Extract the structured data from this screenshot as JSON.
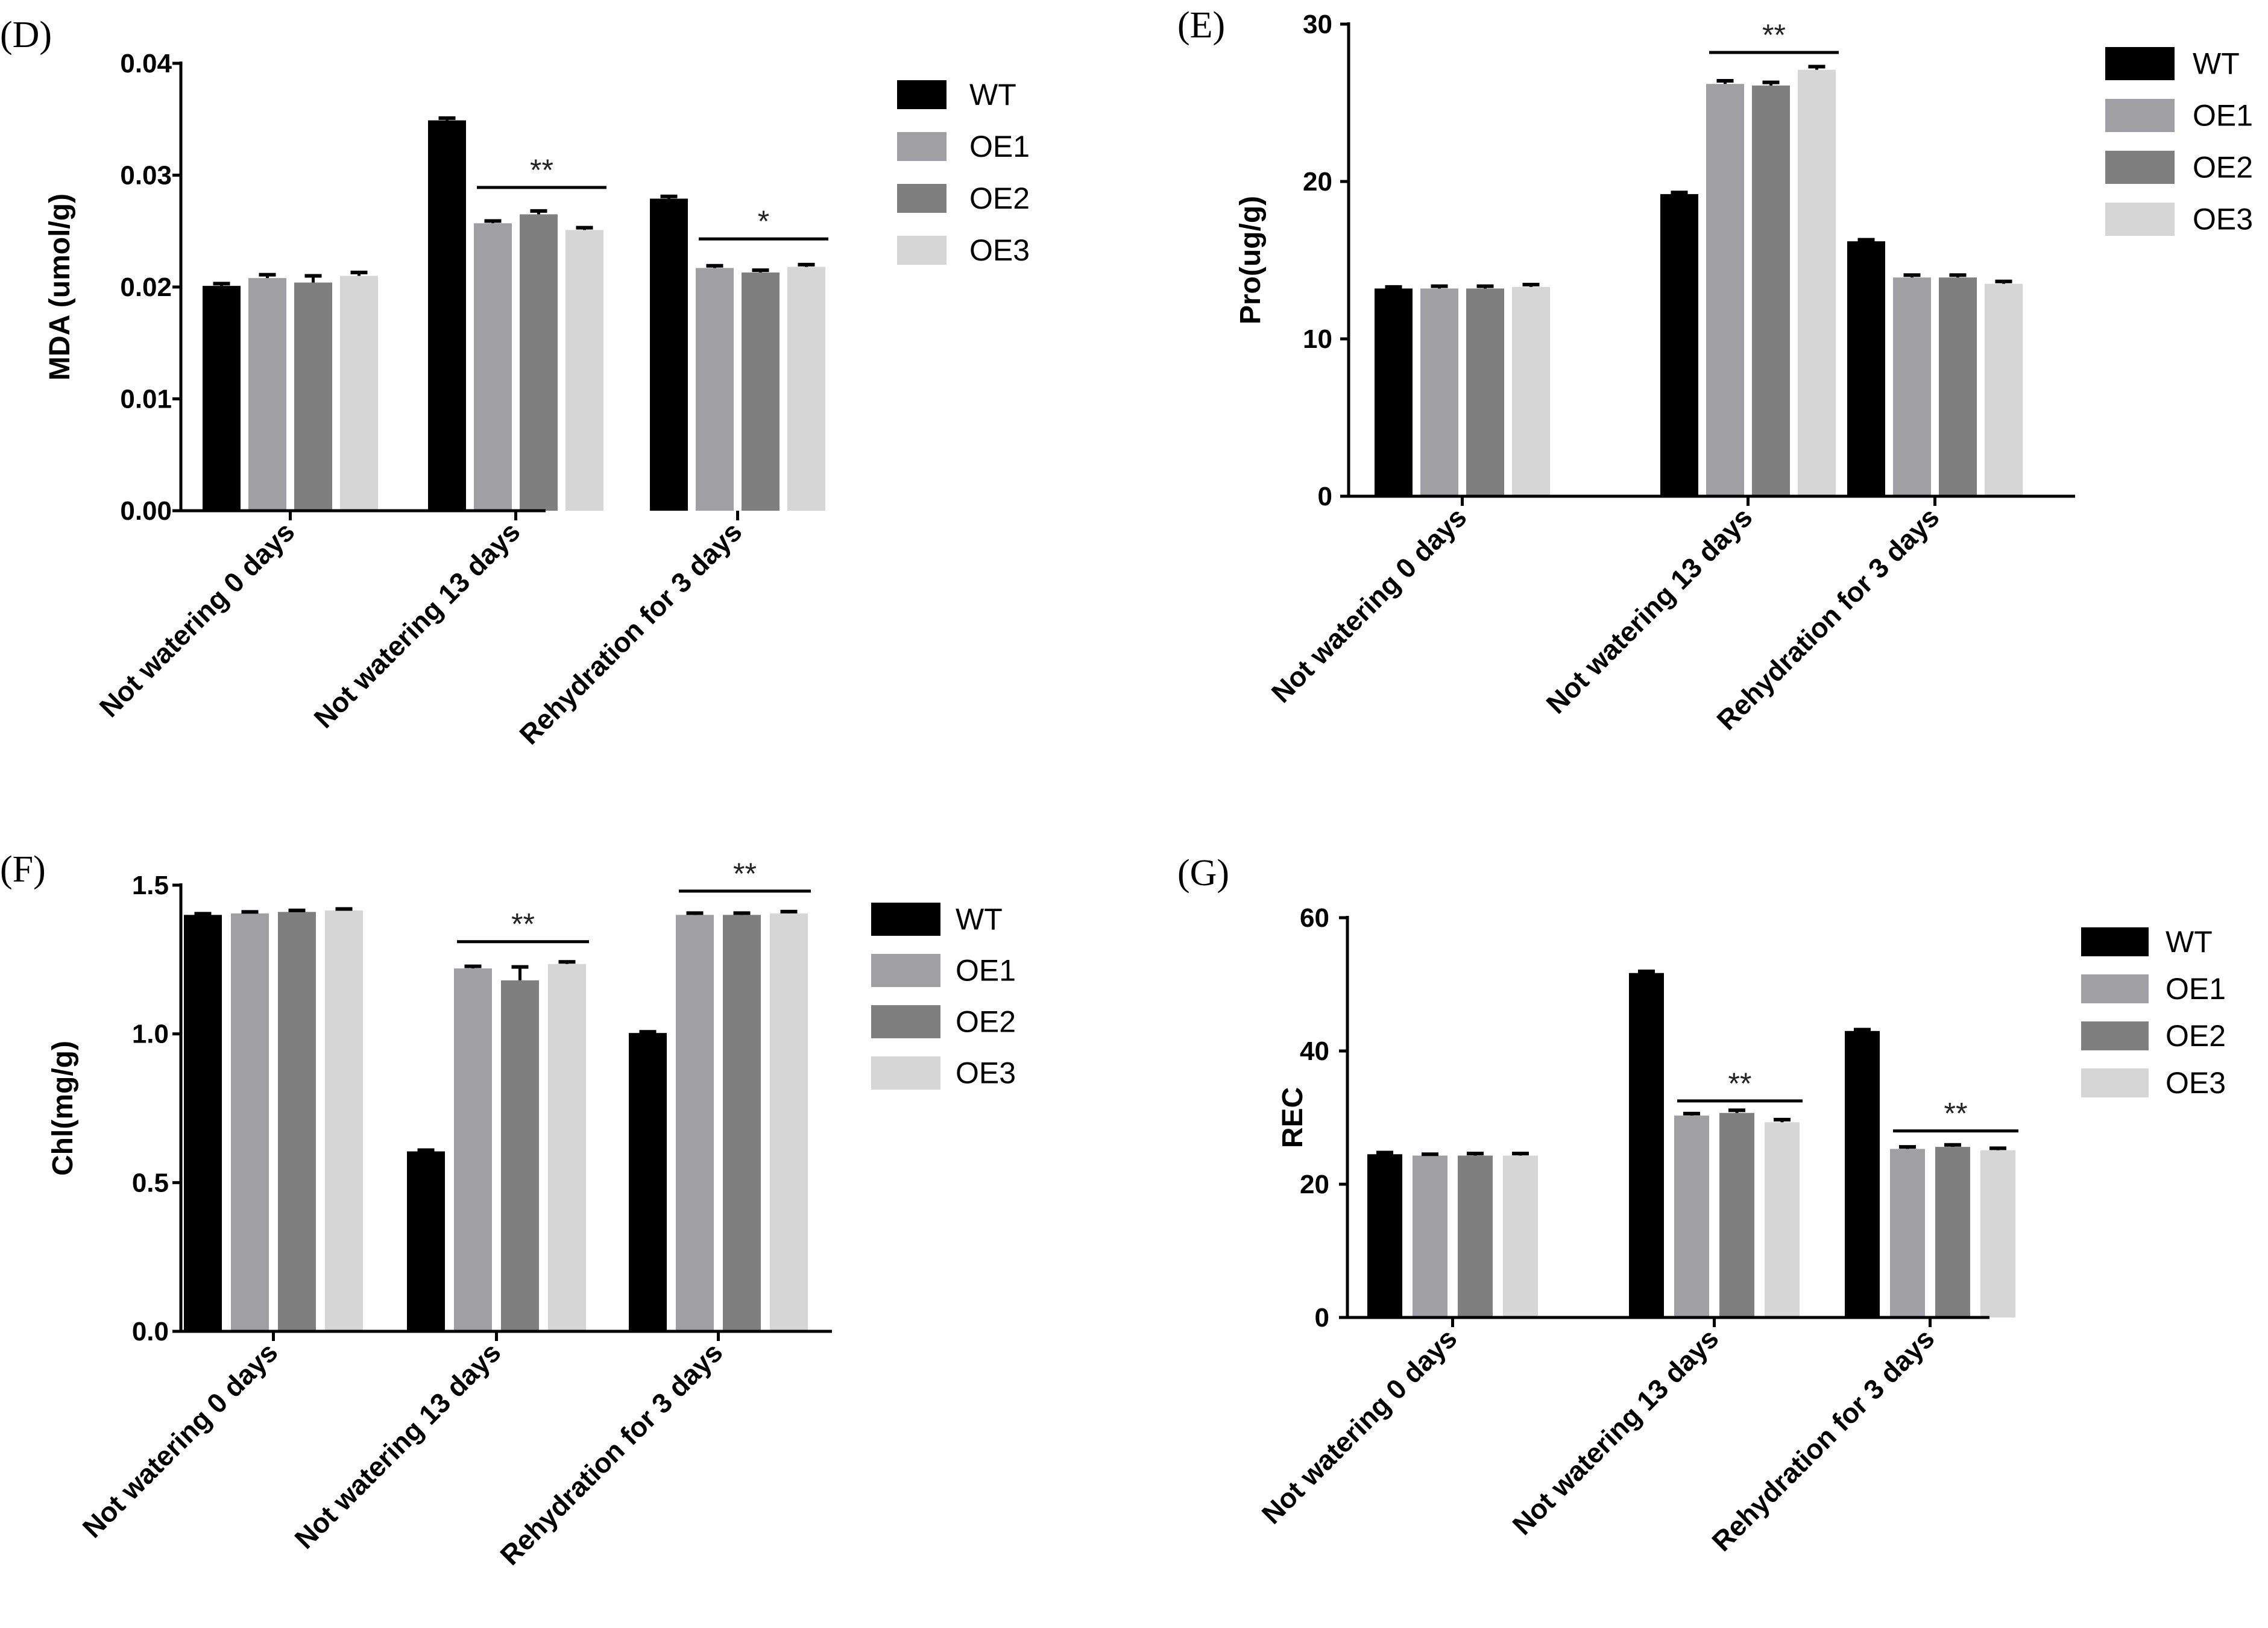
{
  "figure": {
    "categories": [
      "Not watering 0 days",
      "Not watering 13 days",
      "Rehydration for 3 days"
    ],
    "series_colors": {
      "WT": "#000000",
      "OE1": "#a0a0a4",
      "OE2": "#7f7f7f",
      "OE3": "#d6d6d6"
    }
  },
  "chart_data": [
    {
      "panel": "(D)",
      "type": "bar",
      "ylabel": "MDA (umol/g)",
      "ylim": [
        0,
        0.04
      ],
      "yticks": [
        "0.00",
        "0.01",
        "0.02",
        "0.03",
        "0.04"
      ],
      "ytick_values": [
        0,
        0.01,
        0.02,
        0.03,
        0.04
      ],
      "categories": [
        "Not watering 0 days",
        "Not watering 13 days",
        "Rehydration for 3 days"
      ],
      "series": [
        {
          "name": "WT",
          "values": [
            0.0201,
            0.0349,
            0.0279
          ],
          "errors": [
            0.0002,
            0.0002,
            0.0002
          ]
        },
        {
          "name": "OE1",
          "values": [
            0.0208,
            0.0257,
            0.0217
          ],
          "errors": [
            0.0003,
            0.0002,
            0.0002
          ]
        },
        {
          "name": "OE2",
          "values": [
            0.0204,
            0.0265,
            0.0213
          ],
          "errors": [
            0.0006,
            0.0003,
            0.0002
          ]
        },
        {
          "name": "OE3",
          "values": [
            0.021,
            0.0251,
            0.0218
          ],
          "errors": [
            0.0003,
            0.0002,
            0.0002
          ]
        }
      ],
      "significance": [
        {
          "category": 1,
          "label": "**",
          "level": 0.0289
        },
        {
          "category": 2,
          "label": "*",
          "level": 0.0243
        }
      ]
    },
    {
      "panel": "(E)",
      "type": "bar",
      "ylabel": "Pro(ug/g)",
      "ylim": [
        0,
        30
      ],
      "yticks": [
        "0",
        "10",
        "20",
        "30"
      ],
      "ytick_values": [
        0,
        10,
        20,
        30
      ],
      "categories": [
        "Not watering 0 days",
        "Not watering 13 days",
        "Rehydration for 3 days"
      ],
      "series": [
        {
          "name": "WT",
          "values": [
            13.2,
            19.2,
            16.2
          ],
          "errors": [
            0.1,
            0.1,
            0.1
          ]
        },
        {
          "name": "OE1",
          "values": [
            13.2,
            26.2,
            13.9
          ],
          "errors": [
            0.15,
            0.2,
            0.15
          ]
        },
        {
          "name": "OE2",
          "values": [
            13.2,
            26.1,
            13.9
          ],
          "errors": [
            0.15,
            0.2,
            0.15
          ]
        },
        {
          "name": "OE3",
          "values": [
            13.3,
            27.1,
            13.5
          ],
          "errors": [
            0.15,
            0.2,
            0.15
          ]
        }
      ],
      "significance": [
        {
          "category": 1,
          "label": "**",
          "level": 28.2
        }
      ]
    },
    {
      "panel": "(F)",
      "type": "bar",
      "ylabel": "Chl(mg/g)",
      "ylim": [
        0,
        1.5
      ],
      "yticks": [
        "0.0",
        "0.5",
        "1.0",
        "1.5"
      ],
      "ytick_values": [
        0,
        0.5,
        1.0,
        1.5
      ],
      "categories": [
        "Not watering 0 days",
        "Not watering 13 days",
        "Rehydration for 3 days"
      ],
      "series": [
        {
          "name": "WT",
          "values": [
            1.4,
            0.605,
            1.003
          ],
          "errors": [
            0.004,
            0.004,
            0.004
          ]
        },
        {
          "name": "OE1",
          "values": [
            1.405,
            1.22,
            1.4
          ],
          "errors": [
            0.005,
            0.007,
            0.006
          ]
        },
        {
          "name": "OE2",
          "values": [
            1.41,
            1.18,
            1.4
          ],
          "errors": [
            0.005,
            0.045,
            0.006
          ]
        },
        {
          "name": "OE3",
          "values": [
            1.415,
            1.235,
            1.405
          ],
          "errors": [
            0.005,
            0.007,
            0.006
          ]
        }
      ],
      "significance": [
        {
          "category": 1,
          "label": "**",
          "level": 1.31
        },
        {
          "category": 2,
          "label": "**",
          "level": 1.48
        }
      ]
    },
    {
      "panel": "(G)",
      "type": "bar",
      "ylabel": "REC",
      "ylim": [
        0,
        60
      ],
      "yticks": [
        "0",
        "20",
        "40",
        "60"
      ],
      "ytick_values": [
        0,
        20,
        40,
        60
      ],
      "categories": [
        "Not watering 0 days",
        "Not watering 13 days",
        "Rehydration for 3 days"
      ],
      "series": [
        {
          "name": "WT",
          "values": [
            24.5,
            51.7,
            43.0
          ],
          "errors": [
            0.25,
            0.25,
            0.2
          ]
        },
        {
          "name": "OE1",
          "values": [
            24.3,
            30.3,
            25.3
          ],
          "errors": [
            0.2,
            0.3,
            0.3
          ]
        },
        {
          "name": "OE2",
          "values": [
            24.3,
            30.7,
            25.6
          ],
          "errors": [
            0.3,
            0.4,
            0.3
          ]
        },
        {
          "name": "OE3",
          "values": [
            24.3,
            29.3,
            25.1
          ],
          "errors": [
            0.3,
            0.4,
            0.3
          ]
        }
      ],
      "significance": [
        {
          "category": 1,
          "label": "**",
          "level": 32.5
        },
        {
          "category": 2,
          "label": "**",
          "level": 28.0
        }
      ]
    }
  ]
}
